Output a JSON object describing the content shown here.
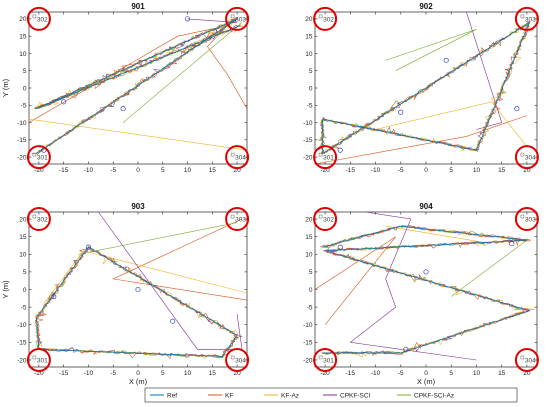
{
  "chart_data": [
    {
      "type": "line",
      "title": "901",
      "xlabel": "",
      "ylabel": "Y (m)",
      "xlim": [
        -22,
        22
      ],
      "ylim": [
        -22,
        22
      ],
      "xticks": [
        -20,
        -15,
        -10,
        -5,
        0,
        5,
        10,
        15,
        20
      ],
      "yticks": [
        -20,
        -15,
        -10,
        -5,
        0,
        5,
        10,
        15,
        20
      ],
      "anchors": [
        {
          "label": "302",
          "x": -20,
          "y": 20
        },
        {
          "label": "303",
          "x": 20,
          "y": 20
        },
        {
          "label": "301",
          "x": -20,
          "y": -20
        },
        {
          "label": "304",
          "x": 20,
          "y": -20
        }
      ],
      "path": [
        [
          -20.5,
          -19
        ],
        [
          20,
          20
        ],
        [
          -20.5,
          -6
        ],
        [
          20.5,
          18
        ]
      ],
      "outliers": [
        {
          "series": "KF",
          "points": [
            [
              -22,
              -10
            ],
            [
              8,
              15
            ],
            [
              18,
              18
            ],
            [
              14,
              12
            ],
            [
              18,
              4
            ],
            [
              22,
              -6
            ]
          ]
        },
        {
          "series": "KF-Az",
          "points": [
            [
              -22,
              -9
            ],
            [
              22,
              -18
            ]
          ]
        },
        {
          "series": "CPKF-SCI",
          "points": [
            [
              10,
              20
            ],
            [
              20,
              19
            ]
          ]
        },
        {
          "series": "CPKF-SCI-Az",
          "points": [
            [
              -3,
              -10
            ],
            [
              21,
              19
            ]
          ]
        }
      ],
      "markers": [
        [
          -19,
          -18
        ],
        [
          -3,
          -6
        ],
        [
          10,
          20
        ],
        [
          -15,
          -4
        ]
      ]
    },
    {
      "type": "line",
      "title": "902",
      "xlabel": "",
      "ylabel": "",
      "xlim": [
        -22,
        22
      ],
      "ylim": [
        -22,
        22
      ],
      "xticks": [
        -20,
        -15,
        -10,
        -5,
        0,
        5,
        10,
        15,
        20
      ],
      "yticks": [
        -20,
        -15,
        -10,
        -5,
        0,
        5,
        10,
        15,
        20
      ],
      "anchors": [
        {
          "label": "302",
          "x": -20,
          "y": 20
        },
        {
          "label": "303",
          "x": 20,
          "y": 20
        },
        {
          "label": "301",
          "x": -20,
          "y": -20
        },
        {
          "label": "304",
          "x": 20,
          "y": -20
        }
      ],
      "path": [
        [
          -20.5,
          -19
        ],
        [
          20.5,
          19
        ],
        [
          10,
          -18
        ],
        [
          -20.5,
          -9
        ],
        [
          -20.5,
          -19
        ]
      ],
      "outliers": [
        {
          "series": "KF",
          "points": [
            [
              -22,
              -22
            ],
            [
              8,
              -14
            ],
            [
              20,
              -8
            ]
          ]
        },
        {
          "series": "KF-Az",
          "points": [
            [
              -10,
              -12
            ],
            [
              13,
              -4
            ],
            [
              20,
              -17
            ]
          ]
        },
        {
          "series": "CPKF-SCI",
          "points": [
            [
              8,
              22
            ],
            [
              15,
              -10
            ],
            [
              10,
              -12
            ]
          ]
        },
        {
          "series": "CPKF-SCI-Az",
          "points": [
            [
              -6,
              5
            ],
            [
              10,
              17
            ],
            [
              -8,
              8
            ]
          ]
        }
      ],
      "markers": [
        [
          -17,
          -18
        ],
        [
          4,
          8
        ],
        [
          18,
          -6
        ],
        [
          -5,
          -7
        ]
      ]
    },
    {
      "type": "line",
      "title": "903",
      "xlabel": "X (m)",
      "ylabel": "Y (m)",
      "xlim": [
        -22,
        22
      ],
      "ylim": [
        -22,
        22
      ],
      "xticks": [
        -20,
        -15,
        -10,
        -5,
        0,
        5,
        10,
        15,
        20
      ],
      "yticks": [
        -20,
        -15,
        -10,
        -5,
        0,
        5,
        10,
        15,
        20
      ],
      "anchors": [
        {
          "label": "302",
          "x": -20,
          "y": 20
        },
        {
          "label": "303",
          "x": 20,
          "y": 20
        },
        {
          "label": "301",
          "x": -20,
          "y": -20
        },
        {
          "label": "304",
          "x": 20,
          "y": -20
        }
      ],
      "path": [
        [
          -20.5,
          -8
        ],
        [
          -10,
          12
        ],
        [
          20,
          -13
        ],
        [
          17,
          -19
        ],
        [
          -20,
          -17
        ],
        [
          -20.5,
          -8
        ]
      ],
      "outliers": [
        {
          "series": "KF",
          "points": [
            [
              22,
              -3
            ],
            [
              -5,
              3
            ],
            [
              21,
              20
            ]
          ]
        },
        {
          "series": "KF-Az",
          "points": [
            [
              -19,
              -4
            ],
            [
              -11,
              11
            ],
            [
              22,
              -1
            ]
          ]
        },
        {
          "series": "CPKF-SCI",
          "points": [
            [
              -8,
              22
            ],
            [
              12,
              -17
            ],
            [
              21,
              -17
            ],
            [
              20,
              -7
            ]
          ]
        },
        {
          "series": "CPKF-SCI-Az",
          "points": [
            [
              -12,
              10
            ],
            [
              20,
              19
            ]
          ]
        }
      ],
      "markers": [
        [
          -10,
          12
        ],
        [
          0,
          0
        ],
        [
          7,
          -9
        ],
        [
          -17,
          -2
        ]
      ]
    },
    {
      "type": "line",
      "title": "904",
      "xlabel": "X (m)",
      "ylabel": "",
      "xlim": [
        -22,
        22
      ],
      "ylim": [
        -22,
        22
      ],
      "xticks": [
        -20,
        -15,
        -10,
        -5,
        0,
        5,
        10,
        15,
        20
      ],
      "yticks": [
        -20,
        -15,
        -10,
        -5,
        0,
        5,
        10,
        15,
        20
      ],
      "anchors": [
        {
          "label": "302",
          "x": -20,
          "y": 20
        },
        {
          "label": "303",
          "x": 20,
          "y": 20
        },
        {
          "label": "301",
          "x": -20,
          "y": -20
        },
        {
          "label": "304",
          "x": 20,
          "y": -20
        }
      ],
      "path": [
        [
          -20.5,
          12
        ],
        [
          -5,
          18
        ],
        [
          20,
          14
        ],
        [
          -20,
          11
        ],
        [
          20.5,
          -6
        ],
        [
          -5,
          -18
        ],
        [
          -20.5,
          -18
        ]
      ],
      "outliers": [
        {
          "series": "KF",
          "points": [
            [
              -20,
              -10
            ],
            [
              -6,
              15
            ],
            [
              -22,
              0
            ]
          ]
        },
        {
          "series": "KF-Az",
          "points": [
            [
              -8,
              18
            ],
            [
              13,
              13
            ]
          ]
        },
        {
          "series": "CPKF-SCI",
          "points": [
            [
              -12,
              22
            ],
            [
              -3,
              20
            ],
            [
              -8,
              3
            ],
            [
              -6,
              -5
            ],
            [
              -15,
              -15
            ],
            [
              10,
              -20
            ]
          ]
        },
        {
          "series": "CPKF-SCI-Az",
          "points": [
            [
              5,
              -2
            ],
            [
              20,
              14
            ]
          ]
        }
      ],
      "markers": [
        [
          -17,
          12
        ],
        [
          0,
          5
        ],
        [
          -4,
          -17
        ],
        [
          17,
          13
        ]
      ]
    }
  ],
  "legend": {
    "placement": "bottom-center",
    "items": [
      {
        "label": "Ref",
        "color": "#0072bd"
      },
      {
        "label": "KF",
        "color": "#d95319"
      },
      {
        "label": "KF-Az",
        "color": "#edb120"
      },
      {
        "label": "CPKF-SCI",
        "color": "#7e2f8e"
      },
      {
        "label": "CPKF-SCI-Az",
        "color": "#77ac30"
      }
    ]
  },
  "colors": {
    "Ref": "#0072bd",
    "KF": "#d95319",
    "KF-Az": "#edb120",
    "CPKF-SCI": "#7e2f8e",
    "CPKF-SCI-Az": "#77ac30",
    "anchor_circle": "#e00000",
    "marker": "#3344cc"
  }
}
